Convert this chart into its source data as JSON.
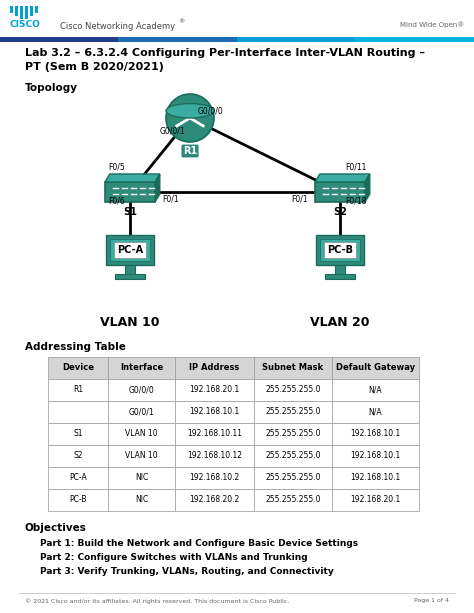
{
  "title_line1": "Lab 3.2 – 6.3.2.4 Configuring Per-Interface Inter-VLAN Routing –",
  "title_line2": "PT (Sem B 2020/2021)",
  "header_cisco_text": "Cisco Networking Academy®",
  "header_right_text": "Mind Wide Open®",
  "topology_label": "Topology",
  "addressing_table_title": "Addressing Table",
  "table_headers": [
    "Device",
    "Interface",
    "IP Address",
    "Subnet Mask",
    "Default Gateway"
  ],
  "table_rows": [
    [
      "R1",
      "G0/0/0",
      "192.168.20.1",
      "255.255.255.0",
      "N/A"
    ],
    [
      "",
      "G0/0/1",
      "192.168.10.1",
      "255.255.255.0",
      "N/A"
    ],
    [
      "S1",
      "VLAN 10",
      "192.168.10.11",
      "255.255.255.0",
      "192.168.10.1"
    ],
    [
      "S2",
      "VLAN 10",
      "192.168.10.12",
      "255.255.255.0",
      "192.168.10.1"
    ],
    [
      "PC-A",
      "NIC",
      "192.168.10.2",
      "255.255.255.0",
      "192.168.10.1"
    ],
    [
      "PC-B",
      "NIC",
      "192.168.20.2",
      "255.255.255.0",
      "192.168.20.1"
    ]
  ],
  "objectives_title": "Objectives",
  "objectives": [
    "Part 1: Build the Network and Configure Basic Device Settings",
    "Part 2: Configure Switches with VLANs and Trunking",
    "Part 3: Verify Trunking, VLANs, Routing, and Connectivity"
  ],
  "footer_left": "© 2021 Cisco and/or its affiliates. All rights reserved. This document is Cisco Public.",
  "footer_right": "Page 1 of 4",
  "bg_color": "#ffffff",
  "teal_color": "#2e8b7a",
  "teal_dark": "#1a6b5a",
  "teal_light": "#3aada0",
  "vlan10_label": "VLAN 10",
  "vlan20_label": "VLAN 20",
  "r1x": 0.355,
  "r1y": 0.742,
  "s1x": 0.255,
  "s1y": 0.66,
  "s2x": 0.72,
  "s2y": 0.66,
  "pcax": 0.255,
  "pcay": 0.572,
  "pcbx": 0.72,
  "pcby": 0.572
}
